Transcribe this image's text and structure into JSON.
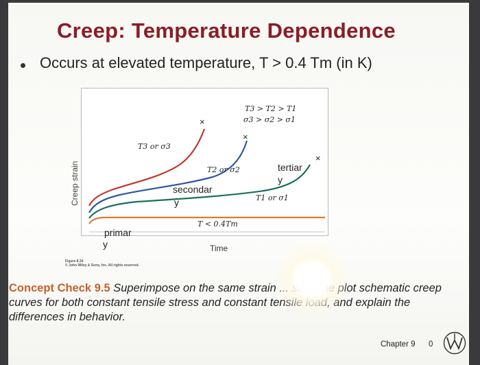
{
  "slide": {
    "title": "Creep: Temperature Dependence",
    "bullet": "Occurs at elevated temperature, T > 0.4 Tm (in K)"
  },
  "chart_data": {
    "type": "line",
    "title": "",
    "xlabel": "Time",
    "ylabel": "Creep strain",
    "series": [
      {
        "name": "T3 or σ3"
      },
      {
        "name": "T2 or σ2"
      },
      {
        "name": "T1 or σ1"
      },
      {
        "name": "T < 0.4Tm"
      }
    ],
    "annotations": {
      "order_t": "T3 > T2 > T1",
      "order_s": "σ3 > σ2 > σ1",
      "t3": "T3 or σ3",
      "t2": "T2 or σ2",
      "t1": "T1 or σ1",
      "tlow": "T < 0.4Tm",
      "tertiary_a": "tertiar",
      "tertiary_b": "y",
      "secondary_a": "secondar",
      "secondary_b": "y",
      "primary_a": "primar",
      "primary_b": "y",
      "rupture": "×"
    },
    "colors": {
      "t3": "#c0392b",
      "t2": "#2c56a3",
      "t1": "#17705a",
      "tlow": "#e07b2c"
    }
  },
  "figure": {
    "caption_line1": "Figure 8.34",
    "caption_line2": "© John Wiley & Sons, Inc. All rights reserved."
  },
  "concept": {
    "label": "Concept Check 9.5",
    "text": " Superimpose on the same strain ... sus-time plot schematic creep curves for both constant tensile stress and constant tensile load, and explain the differences in behavior."
  },
  "footer": {
    "chapter": "Chapter 9",
    "page": "0",
    "logo": "wiley-logo-icon"
  }
}
